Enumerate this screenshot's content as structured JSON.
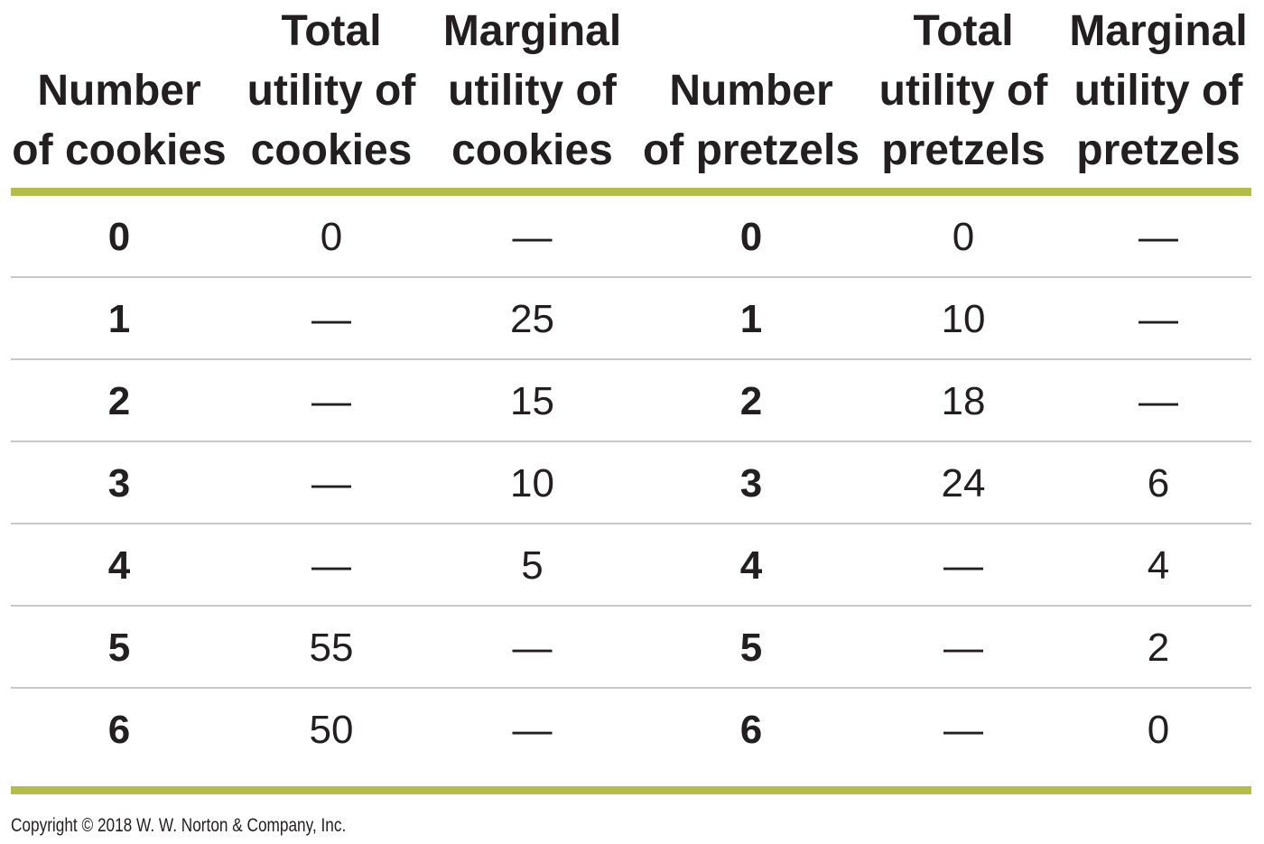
{
  "table": {
    "headers": [
      "Number\nof cookies",
      "Total\nutility of\ncookies",
      "Marginal\nutility of\ncookies",
      "Number\nof pretzels",
      "Total\nutility of\npretzels",
      "Marginal\nutility of\npretzels"
    ],
    "rows": [
      [
        "0",
        "0",
        "—",
        "0",
        "0",
        "—"
      ],
      [
        "1",
        "—",
        "25",
        "1",
        "10",
        "—"
      ],
      [
        "2",
        "—",
        "15",
        "2",
        "18",
        "—"
      ],
      [
        "3",
        "—",
        "10",
        "3",
        "24",
        "6"
      ],
      [
        "4",
        "—",
        "5",
        "4",
        "—",
        "4"
      ],
      [
        "5",
        "55",
        "—",
        "5",
        "—",
        "2"
      ],
      [
        "6",
        "50",
        "—",
        "6",
        "—",
        "0"
      ]
    ]
  },
  "accent_color": "#b4bd4c",
  "footer": {
    "copyright": "Copyright © 2018 W. W. Norton & Company, Inc."
  }
}
